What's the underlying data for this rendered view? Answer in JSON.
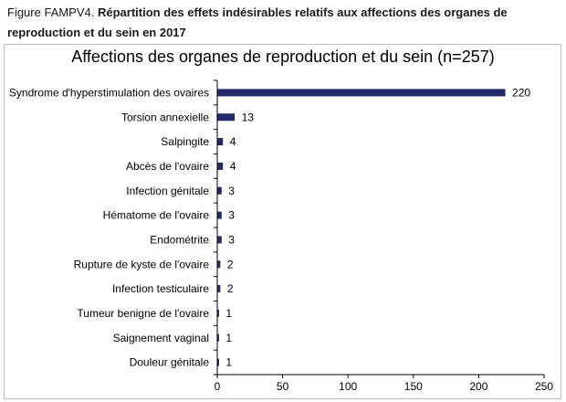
{
  "figure": {
    "label": "Figure FAMPV4.",
    "caption": "Répartition des effets indésirables relatifs aux affections des organes de reproduction et du sein en 2017"
  },
  "chart_data": {
    "type": "bar",
    "orientation": "horizontal",
    "title": "Affections des organes de reproduction et du sein (n=257)",
    "xlabel": "",
    "ylabel": "",
    "categories": [
      "Syndrome d'hyperstimulation des ovaires",
      "Torsion annexielle",
      "Salpingite",
      "Abcès de l'ovaire",
      "Infection génitale",
      "Hématome de l'ovaire",
      "Endométrite",
      "Rupture de kyste de l'ovaire",
      "Infection testiculaire",
      "Tumeur benigne de l'ovaire",
      "Saignement vaginal",
      "Douleur génitale"
    ],
    "values": [
      220,
      13,
      4,
      4,
      3,
      3,
      3,
      2,
      2,
      1,
      1,
      1
    ],
    "xlim": [
      0,
      250
    ],
    "xticks": [
      0,
      50,
      100,
      150,
      200,
      250
    ],
    "grid": false,
    "data_labels": true,
    "bar_color": "#1f2b6e"
  }
}
